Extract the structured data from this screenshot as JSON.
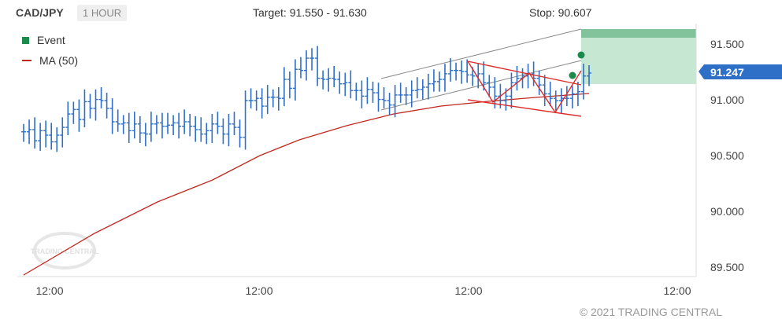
{
  "header": {
    "symbol": "CAD/JPY",
    "timeframe": "1 HOUR",
    "target": "Target: 91.550 - 91.630",
    "stop": "Stop: 90.607"
  },
  "legend": {
    "event_label": "Event",
    "ma_label": "MA (50)"
  },
  "watermark": "TRADING CENTRAL",
  "copyright": "© 2021 TRADING CENTRAL",
  "colors": {
    "candle": "#2e6fc7",
    "ma": "#c0281d",
    "pattern": "#e02a2a",
    "channel": "#8a8a8a",
    "event": "#1b8a4c",
    "target_zone": "#c6e7d1",
    "target_band": "#83c39b",
    "price_tag": "#2e6fc7"
  },
  "chart_data": {
    "type": "ohlc",
    "ylim": [
      89.45,
      91.65
    ],
    "y_ticks": [
      "91.500",
      "91.000",
      "90.500",
      "90.000",
      "89.500"
    ],
    "x_ticks": [
      "12:00",
      "12:00",
      "12:00",
      "12:00"
    ],
    "last_price": "91.247",
    "target_range": [
      91.55,
      91.63
    ],
    "closes": [
      90.72,
      90.74,
      90.64,
      90.73,
      90.69,
      90.63,
      90.69,
      90.76,
      90.88,
      90.92,
      90.83,
      90.99,
      90.93,
      91.01,
      91.0,
      90.93,
      90.81,
      90.79,
      90.8,
      90.73,
      90.79,
      90.71,
      90.7,
      90.79,
      90.8,
      90.77,
      90.78,
      90.8,
      90.77,
      90.81,
      90.77,
      90.74,
      90.7,
      90.73,
      90.79,
      90.77,
      90.7,
      90.79,
      90.76,
      90.67,
      91.0,
      91.0,
      91.02,
      90.95,
      91.03,
      91.03,
      91.02,
      91.19,
      91.11,
      91.28,
      91.27,
      91.38,
      91.38,
      91.2,
      91.19,
      91.2,
      91.19,
      91.15,
      91.16,
      91.09,
      91.09,
      91.04,
      91.1,
      91.07,
      91.01,
      91.0,
      90.96,
      91.05,
      91.05,
      91.05,
      91.09,
      91.1,
      91.12,
      91.15,
      91.17,
      91.19,
      91.24,
      91.27,
      91.27,
      91.26,
      91.23,
      91.22,
      91.24,
      91.16,
      91.12,
      91.04,
      91.0,
      91.04,
      91.16,
      91.2,
      91.22,
      91.24,
      91.2,
      91.14,
      91.06,
      91.02,
      91.0,
      91.02,
      91.02,
      91.06,
      91.08,
      91.22,
      91.247
    ]
  }
}
